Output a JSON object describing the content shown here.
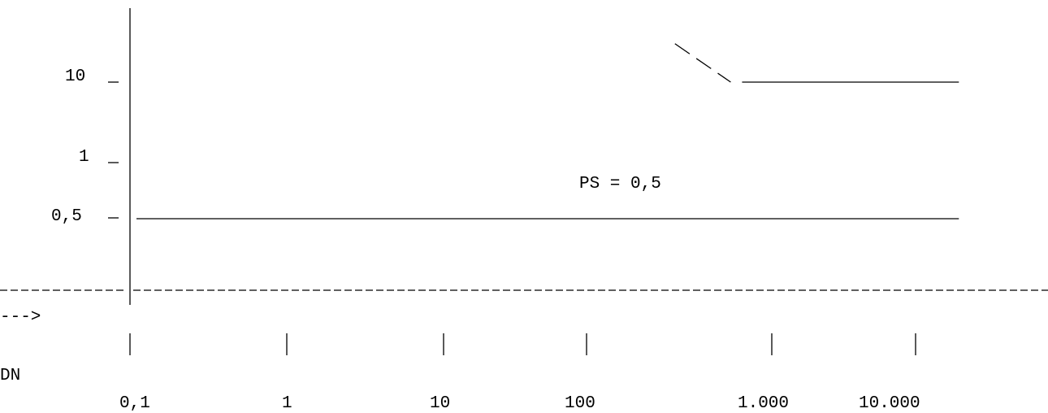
{
  "chart_data": {
    "type": "line",
    "style": "ascii-art",
    "x_scale": "log",
    "y_scale": "log",
    "xlabel": "DN",
    "arrow": "--->",
    "x_ticks": [
      "0,1",
      "1",
      "10",
      "100",
      "1.000",
      "10.000"
    ],
    "y_ticks": [
      "10",
      "1",
      "0,5"
    ],
    "annotations": [
      {
        "text": "PS = 0,5"
      }
    ],
    "series": [
      {
        "points": [
          {
            "x": 0.1,
            "y": 0.5
          },
          {
            "x": 20000,
            "y": 0.5
          }
        ]
      },
      {
        "points": [
          {
            "x": 300,
            "y": 30
          },
          {
            "x": 600,
            "y": 10
          },
          {
            "x": 20000,
            "y": 10
          }
        ]
      }
    ]
  },
  "colors": {
    "ink": "#000000",
    "background": "#ffffff"
  }
}
